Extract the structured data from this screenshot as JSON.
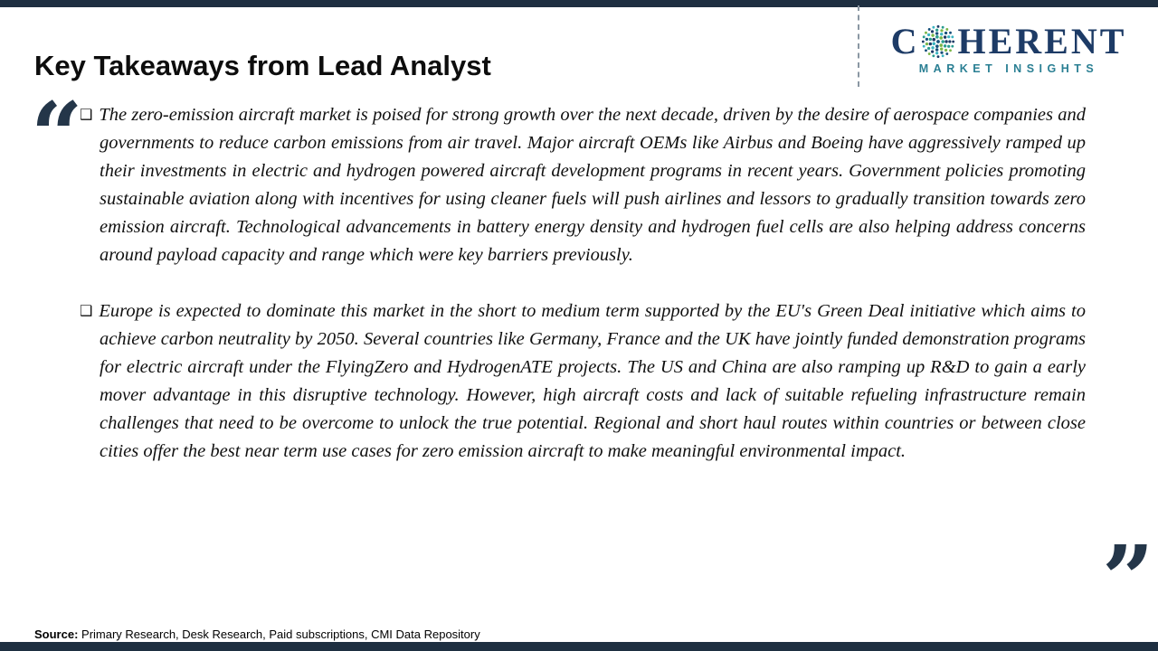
{
  "page": {
    "title": "Key Takeaways from Lead Analyst"
  },
  "logo": {
    "letter_first": "C",
    "letters_rest": "HERENT",
    "subtitle": "MARKET INSIGHTS",
    "globe_icon": "dotted-globe-o",
    "colors": {
      "navy": "#1d3b66",
      "teal": "#2a9d8f",
      "green": "#7ab648",
      "light_blue": "#3bb4c1",
      "deep_blue": "#15507a"
    }
  },
  "content": {
    "open_quote_glyph": "“",
    "close_quote_glyph": "”",
    "bullet_glyph": "❑",
    "paragraphs": [
      {
        "text": "The zero-emission aircraft market is poised for strong growth over the next decade, driven by the desire of aerospace companies and governments to reduce carbon emissions from air travel. Major aircraft OEMs like Airbus and Boeing have aggressively ramped up their investments in electric and hydrogen powered aircraft development programs in recent years. Government policies promoting sustainable aviation along with incentives for using cleaner fuels will push airlines and lessors to gradually transition towards zero emission aircraft. Technological advancements in battery energy density and hydrogen fuel cells are also helping address concerns around payload capacity and range which were key barriers previously."
      },
      {
        "text": "Europe is expected to dominate this market in the short to medium term supported by the EU's Green Deal initiative which aims to achieve carbon neutrality by 2050. Several countries like Germany, France and the UK have jointly funded demonstration programs for electric aircraft under the FlyingZero and HydrogenATE projects. The US and China are also ramping up R&D to gain a early mover advantage in this disruptive technology. However, high aircraft costs and lack of suitable refueling infrastructure remain challenges that need to be overcome to unlock the true potential. Regional and short haul routes within countries or between close cities offer the best near term use cases for zero emission aircraft to make meaningful environmental impact."
      }
    ]
  },
  "footer": {
    "source_label": "Source:",
    "source_text": " Primary Research, Desk Research, Paid subscriptions, CMI Data Repository"
  },
  "colors": {
    "bar_navy": "#1e2f41",
    "quote_navy": "#243649"
  }
}
